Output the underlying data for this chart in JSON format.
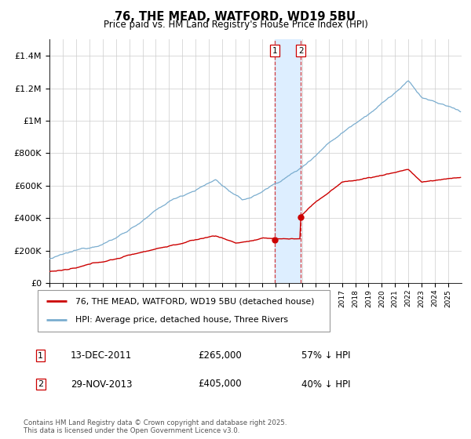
{
  "title": "76, THE MEAD, WATFORD, WD19 5BU",
  "subtitle": "Price paid vs. HM Land Registry's House Price Index (HPI)",
  "hpi_color": "#7aadcf",
  "price_color": "#cc0000",
  "highlight_color": "#ddeeff",
  "vline_color": "#cc0000",
  "grid_color": "#cccccc",
  "background_color": "#ffffff",
  "ylim": [
    0,
    1500000
  ],
  "yticks": [
    0,
    200000,
    400000,
    600000,
    800000,
    1000000,
    1200000,
    1400000
  ],
  "ytick_labels": [
    "£0",
    "£200K",
    "£400K",
    "£600K",
    "£800K",
    "£1M",
    "£1.2M",
    "£1.4M"
  ],
  "year_start": 1995,
  "year_end": 2025,
  "transaction1_year": 2011.96,
  "transaction1_price": 265000,
  "transaction1_date": "13-DEC-2011",
  "transaction1_pct": "57%",
  "transaction2_year": 2013.91,
  "transaction2_price": 405000,
  "transaction2_date": "29-NOV-2013",
  "transaction2_pct": "40%",
  "legend_label_red": "76, THE MEAD, WATFORD, WD19 5BU (detached house)",
  "legend_label_blue": "HPI: Average price, detached house, Three Rivers",
  "footer": "Contains HM Land Registry data © Crown copyright and database right 2025.\nThis data is licensed under the Open Government Licence v3.0."
}
